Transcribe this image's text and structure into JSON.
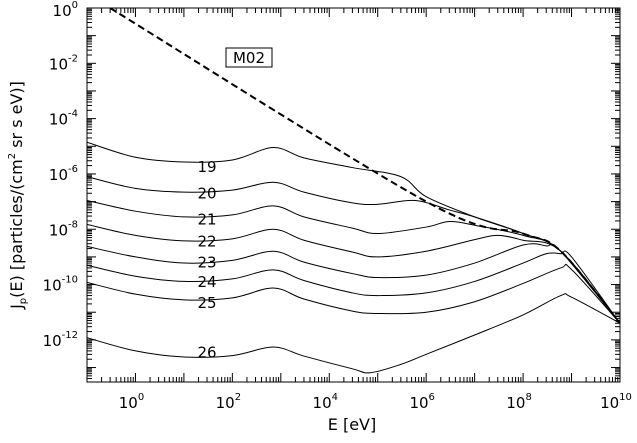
{
  "chart_data": {
    "type": "line",
    "x_scale": "log",
    "y_scale": "log",
    "xlim": [
      0.1,
      10000000000
    ],
    "ylim": [
      3e-14,
      1
    ],
    "xlabel": {
      "main": "E [eV]"
    },
    "ylabel": {
      "lead": "J",
      "sub": "p",
      "mid": "(E) [particles/(cm",
      "sup": "2",
      "tail": " sr s eV)]"
    },
    "x_ticks": [
      {
        "value": 1,
        "base": "10",
        "exp": "0"
      },
      {
        "value": 100,
        "base": "10",
        "exp": "2"
      },
      {
        "value": 10000,
        "base": "10",
        "exp": "4"
      },
      {
        "value": 1000000,
        "base": "10",
        "exp": "6"
      },
      {
        "value": 100000000,
        "base": "10",
        "exp": "8"
      },
      {
        "value": 10000000000,
        "base": "10",
        "exp": "10"
      }
    ],
    "y_ticks": [
      {
        "value": 1,
        "base": "10",
        "exp": "0"
      },
      {
        "value": 0.01,
        "base": "10",
        "exp": "-2"
      },
      {
        "value": 0.0001,
        "base": "10",
        "exp": "-4"
      },
      {
        "value": 1e-06,
        "base": "10",
        "exp": "-6"
      },
      {
        "value": 1e-08,
        "base": "10",
        "exp": "-8"
      },
      {
        "value": 1e-10,
        "base": "10",
        "exp": "-10"
      },
      {
        "value": 1e-12,
        "base": "10",
        "exp": "-12"
      }
    ],
    "annotation": "M02",
    "reference_line": {
      "style": "dashed",
      "points": [
        [
          0.3,
          1
        ],
        [
          1000000,
          1e-07
        ],
        [
          100000000,
          7e-09
        ],
        [
          600000000,
          1.6e-09
        ],
        [
          10000000000,
          4e-12
        ]
      ]
    },
    "series": [
      {
        "name": "19",
        "label_at": [
          30,
          1.2e-06
        ],
        "points": [
          [
            0.1,
            1.4e-05
          ],
          [
            1,
            4e-06
          ],
          [
            10,
            2.7e-06
          ],
          [
            100,
            3.2e-06
          ],
          [
            700,
            9e-06
          ],
          [
            3000,
            3.8e-06
          ],
          [
            30000,
            1.7e-06
          ],
          [
            300000,
            8e-07
          ],
          [
            1000000,
            1.5e-07
          ],
          [
            10000000,
            2.8e-08
          ],
          [
            100000000,
            7e-09
          ],
          [
            600000000,
            1.6e-09
          ],
          [
            10000000000,
            4e-12
          ]
        ]
      },
      {
        "name": "20",
        "label_at": [
          30,
          1.3e-07
        ],
        "points": [
          [
            0.1,
            8e-07
          ],
          [
            1,
            3e-07
          ],
          [
            10,
            2.2e-07
          ],
          [
            100,
            2.6e-07
          ],
          [
            700,
            5e-07
          ],
          [
            3000,
            2.2e-07
          ],
          [
            30000,
            9e-08
          ],
          [
            100000,
            8e-08
          ],
          [
            600000,
            1.1e-07
          ],
          [
            3000000,
            5e-08
          ],
          [
            10000000,
            2.8e-08
          ],
          [
            100000000,
            7e-09
          ],
          [
            600000000,
            1.6e-09
          ],
          [
            10000000000,
            4e-12
          ]
        ]
      },
      {
        "name": "21",
        "label_at": [
          30,
          1.5e-08
        ],
        "points": [
          [
            0.1,
            1.1e-07
          ],
          [
            1,
            4.5e-08
          ],
          [
            10,
            2.8e-08
          ],
          [
            100,
            3.3e-08
          ],
          [
            700,
            7e-08
          ],
          [
            3000,
            2.8e-08
          ],
          [
            30000,
            1.1e-08
          ],
          [
            100000,
            7e-09
          ],
          [
            1000000,
            1.2e-08
          ],
          [
            3000000,
            1.9e-08
          ],
          [
            10000000,
            1.4e-08
          ],
          [
            100000000,
            6e-09
          ],
          [
            600000000,
            1.6e-09
          ],
          [
            10000000000,
            4e-12
          ]
        ]
      },
      {
        "name": "22",
        "label_at": [
          30,
          2.4e-09
        ],
        "points": [
          [
            0.1,
            1.5e-08
          ],
          [
            1,
            6e-09
          ],
          [
            10,
            3.8e-09
          ],
          [
            100,
            4.5e-09
          ],
          [
            700,
            1e-08
          ],
          [
            3000,
            4e-09
          ],
          [
            30000,
            1.5e-09
          ],
          [
            100000,
            1e-09
          ],
          [
            1000000,
            1.6e-09
          ],
          [
            10000000,
            4.2e-09
          ],
          [
            30000000,
            6e-09
          ],
          [
            100000000,
            4e-09
          ],
          [
            600000000,
            1.6e-09
          ],
          [
            10000000000,
            4e-12
          ]
        ]
      },
      {
        "name": "23",
        "label_at": [
          30,
          4.2e-10
        ],
        "points": [
          [
            0.1,
            2.4e-09
          ],
          [
            1,
            1e-09
          ],
          [
            10,
            6e-10
          ],
          [
            100,
            7.5e-10
          ],
          [
            700,
            1.6e-09
          ],
          [
            3000,
            6.5e-10
          ],
          [
            30000,
            2.5e-10
          ],
          [
            100000,
            1.8e-10
          ],
          [
            1000000,
            2.2e-10
          ],
          [
            10000000,
            6e-10
          ],
          [
            100000000,
            2.7e-09
          ],
          [
            300000000,
            2.5e-09
          ],
          [
            600000000,
            1.6e-09
          ],
          [
            10000000000,
            4e-12
          ]
        ]
      },
      {
        "name": "24",
        "label_at": [
          30,
          8e-11
        ],
        "points": [
          [
            0.1,
            5e-10
          ],
          [
            1,
            2e-10
          ],
          [
            10,
            1.3e-10
          ],
          [
            100,
            1.6e-10
          ],
          [
            700,
            3.4e-10
          ],
          [
            3000,
            1.4e-10
          ],
          [
            30000,
            5e-11
          ],
          [
            100000,
            4e-11
          ],
          [
            1000000,
            5e-11
          ],
          [
            10000000,
            1.3e-10
          ],
          [
            100000000,
            6e-10
          ],
          [
            300000000,
            1.3e-09
          ],
          [
            600000000,
            1.3e-09
          ],
          [
            1000000000,
            1e-09
          ],
          [
            10000000000,
            4e-12
          ]
        ]
      },
      {
        "name": "25",
        "label_at": [
          30,
          1.4e-11
        ],
        "points": [
          [
            0.1,
            1.2e-10
          ],
          [
            1,
            4.5e-11
          ],
          [
            10,
            2.8e-11
          ],
          [
            100,
            3.3e-11
          ],
          [
            700,
            7.5e-11
          ],
          [
            3000,
            3e-11
          ],
          [
            30000,
            1.1e-11
          ],
          [
            100000,
            9e-12
          ],
          [
            1000000,
            1e-11
          ],
          [
            10000000,
            2.4e-11
          ],
          [
            100000000,
            1.1e-10
          ],
          [
            600000000,
            4e-10
          ],
          [
            1000000000,
            3.5e-10
          ],
          [
            10000000000,
            4e-12
          ]
        ]
      },
      {
        "name": "26",
        "label_at": [
          30,
          2.3e-13
        ],
        "points": [
          [
            0.1,
            1.2e-12
          ],
          [
            1,
            4e-13
          ],
          [
            10,
            2.4e-13
          ],
          [
            100,
            2.7e-13
          ],
          [
            700,
            5.5e-13
          ],
          [
            3000,
            2.6e-13
          ],
          [
            30000,
            9e-14
          ],
          [
            70000,
            6.5e-14
          ],
          [
            300000,
            1.3e-13
          ],
          [
            1000000,
            3e-13
          ],
          [
            10000000,
            1.5e-12
          ],
          [
            100000000,
            8e-12
          ],
          [
            600000000,
            4e-11
          ],
          [
            1000000000,
            3.5e-11
          ],
          [
            10000000000,
            4e-12
          ]
        ]
      }
    ],
    "grid": false,
    "legend": "none"
  }
}
